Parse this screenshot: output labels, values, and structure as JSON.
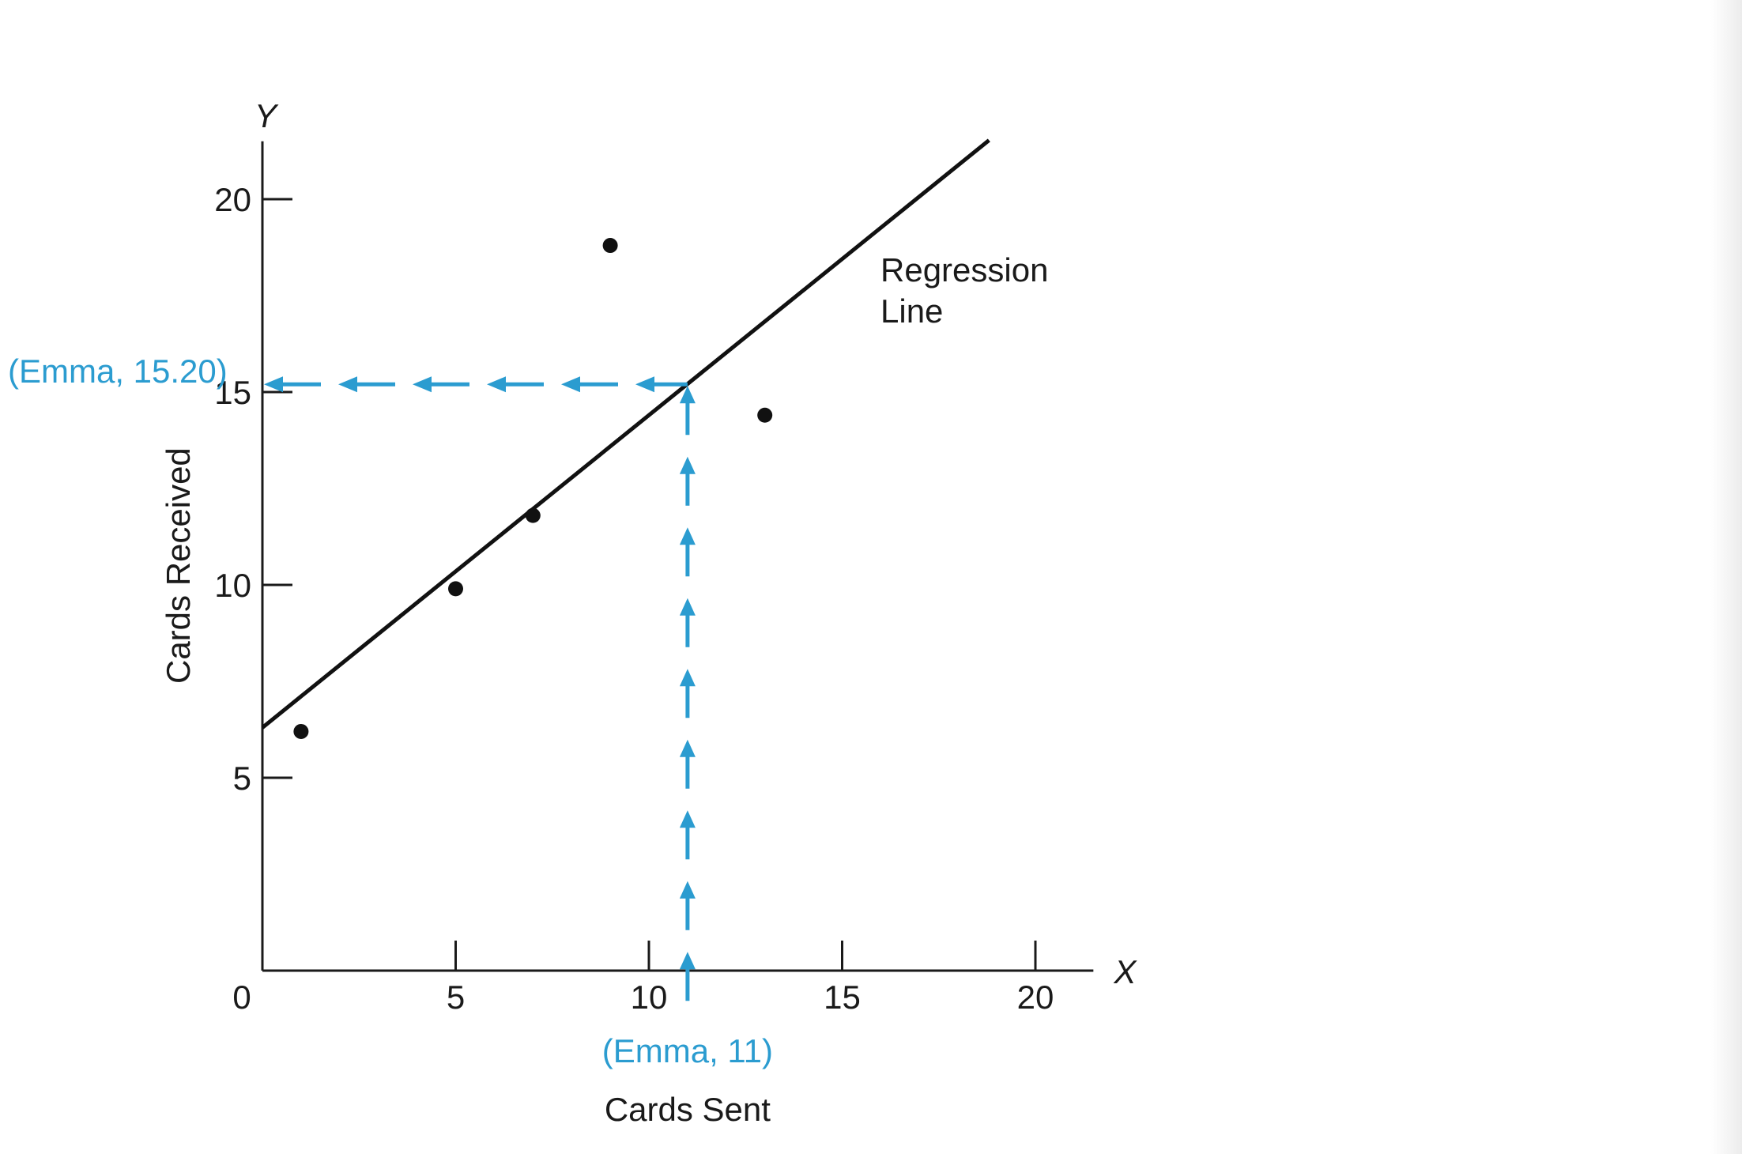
{
  "chart_data": {
    "type": "scatter",
    "xlabel": "Cards Sent",
    "ylabel": "Cards Received",
    "x_axis_letter": "X",
    "y_axis_letter": "Y",
    "xlim": [
      0,
      21.5
    ],
    "ylim": [
      0,
      21.5
    ],
    "origin_label": "0",
    "x_ticks": [
      5,
      10,
      15,
      20
    ],
    "x_tick_labels": [
      "5",
      "10",
      "15",
      "20"
    ],
    "y_ticks": [
      5,
      10,
      15,
      20
    ],
    "y_tick_labels": [
      "5",
      "10",
      "15",
      "20"
    ],
    "grid": false,
    "points": [
      {
        "x": 1,
        "y": 6.2
      },
      {
        "x": 5,
        "y": 9.9
      },
      {
        "x": 7,
        "y": 11.8
      },
      {
        "x": 9,
        "y": 18.8
      },
      {
        "x": 13,
        "y": 14.4
      }
    ],
    "regression_line": {
      "label_line1": "Regression",
      "label_line2": "Line",
      "intercept": 6.3,
      "slope": 0.81,
      "x_start": 0,
      "x_end": 18.8
    },
    "prediction": {
      "x": 11,
      "y": 15.2,
      "x_annotation": "(Emma, 11)",
      "y_annotation": "(Emma, 15.20)",
      "color": "#2b9cd0"
    },
    "colors": {
      "axis": "#1a1a1a",
      "point": "#111111",
      "line": "#111111",
      "annotation": "#2b9cd0"
    }
  }
}
